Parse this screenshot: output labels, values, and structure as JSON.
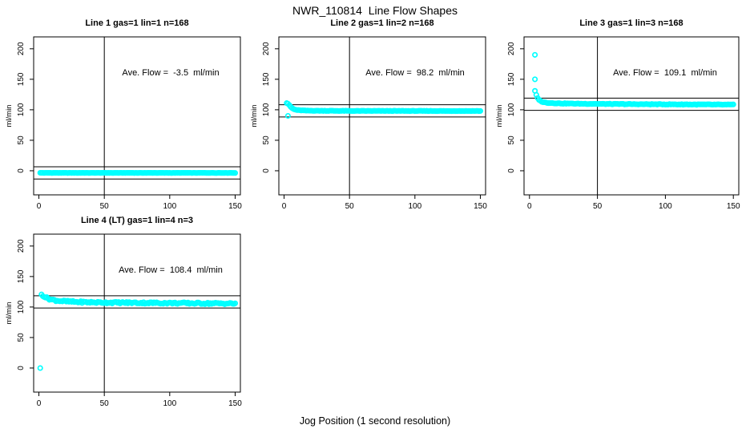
{
  "figure": {
    "title": "NWR_110814  Line Flow Shapes",
    "xlabel": "Jog Position (1 second resolution)",
    "background_color": "#FFFFFF",
    "marker_color": "#00FFFF",
    "axis_color": "#000000"
  },
  "chart_data": [
    {
      "type": "scatter",
      "title": "Line 1 gas=1 lin=1 n=168",
      "gas": 1,
      "lin": 1,
      "n": 168,
      "annotation": "Ave. Flow =  -3.5  ml/min",
      "ave_flow": -3.5,
      "ylabel": "ml/min",
      "xticks": [
        0,
        50,
        100,
        150
      ],
      "yticks": [
        0,
        50,
        100,
        150,
        200
      ],
      "xlim": [
        -4,
        154
      ],
      "ylim": [
        -39.5,
        219.5
      ],
      "vline_x": 50,
      "hlines": [
        6.5,
        -13.5
      ],
      "annotation_pos": [
        100,
        160
      ],
      "x_start": 1,
      "x_end": 150,
      "curve_keypoints": [
        [
          1,
          -3.5
        ],
        [
          150,
          -3.5
        ]
      ],
      "noise_amplitude": 0.2,
      "outliers": [],
      "legend": null,
      "grid": false
    },
    {
      "type": "scatter",
      "title": "Line 2 gas=1 lin=2 n=168",
      "gas": 1,
      "lin": 2,
      "n": 168,
      "annotation": "Ave. Flow =  98.2  ml/min",
      "ave_flow": 98.2,
      "ylabel": "ml/min",
      "xticks": [
        0,
        50,
        100,
        150
      ],
      "yticks": [
        0,
        50,
        100,
        150,
        200
      ],
      "xlim": [
        -4,
        154
      ],
      "ylim": [
        -39.5,
        219.5
      ],
      "vline_x": 50,
      "hlines": [
        108.2,
        88.2
      ],
      "annotation_pos": [
        100,
        160
      ],
      "x_start": 2,
      "x_end": 150,
      "curve_keypoints": [
        [
          2,
          111
        ],
        [
          3,
          110
        ],
        [
          4,
          107.5
        ],
        [
          5,
          105
        ],
        [
          6,
          103
        ],
        [
          7,
          101.5
        ],
        [
          8,
          100.5
        ],
        [
          10,
          99.5
        ],
        [
          13,
          99
        ],
        [
          18,
          98.5
        ],
        [
          28,
          98.3
        ],
        [
          50,
          98.1
        ],
        [
          150,
          98
        ]
      ],
      "noise_amplitude": 0.3,
      "outliers": [
        [
          3,
          90
        ]
      ],
      "legend": null,
      "grid": false
    },
    {
      "type": "scatter",
      "title": "Line 3 gas=1 lin=3 n=168",
      "gas": 1,
      "lin": 3,
      "n": 168,
      "annotation": "Ave. Flow =  109.1  ml/min",
      "ave_flow": 109.1,
      "ylabel": "ml/min",
      "xticks": [
        0,
        50,
        100,
        150
      ],
      "yticks": [
        0,
        50,
        100,
        150,
        200
      ],
      "xlim": [
        -4,
        154
      ],
      "ylim": [
        -39.5,
        219.5
      ],
      "vline_x": 50,
      "hlines": [
        119.1,
        99.1
      ],
      "annotation_pos": [
        100,
        160
      ],
      "x_start": 5,
      "x_end": 150,
      "curve_keypoints": [
        [
          5,
          124
        ],
        [
          6,
          119
        ],
        [
          7,
          116.5
        ],
        [
          8,
          114.5
        ],
        [
          10,
          112.5
        ],
        [
          13,
          111.5
        ],
        [
          18,
          110.8
        ],
        [
          25,
          110.3
        ],
        [
          40,
          109.8
        ],
        [
          60,
          109.4
        ],
        [
          90,
          109
        ],
        [
          120,
          108.7
        ],
        [
          150,
          108.3
        ]
      ],
      "noise_amplitude": 0.5,
      "outliers": [
        [
          4,
          190
        ],
        [
          4,
          150
        ],
        [
          4,
          131
        ]
      ],
      "legend": null,
      "grid": false
    },
    {
      "type": "scatter",
      "title": "Line 4 (LT) gas=1 lin=4 n=3",
      "gas": 1,
      "lin": 4,
      "n": 3,
      "annotation": "Ave. Flow =  108.4  ml/min",
      "ave_flow": 108.4,
      "ylabel": "ml/min",
      "xticks": [
        0,
        50,
        100,
        150
      ],
      "yticks": [
        0,
        50,
        100,
        150,
        200
      ],
      "xlim": [
        -4,
        154
      ],
      "ylim": [
        -39.5,
        219.5
      ],
      "vline_x": 50,
      "hlines": [
        118.4,
        98.4
      ],
      "annotation_pos": [
        100,
        160
      ],
      "x_start": 2,
      "x_end": 150,
      "curve_keypoints": [
        [
          2,
          120.5
        ],
        [
          3,
          119
        ],
        [
          4,
          117.5
        ],
        [
          5,
          116.2
        ],
        [
          6,
          115
        ],
        [
          8,
          113.2
        ],
        [
          10,
          112
        ],
        [
          13,
          110.8
        ],
        [
          17,
          109.8
        ],
        [
          22,
          109
        ],
        [
          28,
          108.4
        ],
        [
          36,
          107.9
        ],
        [
          46,
          107.5
        ],
        [
          58,
          107.2
        ],
        [
          72,
          107
        ],
        [
          90,
          106.7
        ],
        [
          110,
          106.3
        ],
        [
          130,
          106
        ],
        [
          150,
          105.7
        ]
      ],
      "noise_amplitude": 1.4,
      "outliers": [
        [
          1,
          0
        ]
      ],
      "legend": null,
      "grid": false
    }
  ]
}
